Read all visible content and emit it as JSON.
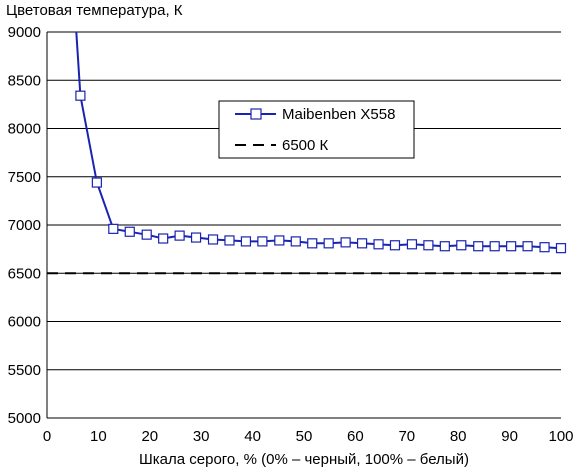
{
  "chart_data": {
    "type": "line",
    "title": "",
    "ylabel": "Цветовая температура, К",
    "xlabel": "Шкала серого, % (0% – черный, 100% – белый)",
    "xlim": [
      0,
      100
    ],
    "ylim": [
      5000,
      9000
    ],
    "xticks": [
      0,
      10,
      20,
      30,
      40,
      50,
      60,
      70,
      80,
      90,
      100
    ],
    "yticks": [
      5000,
      5500,
      6000,
      6500,
      7000,
      7500,
      8000,
      8500,
      9000
    ],
    "grid": "horizontal",
    "legend_position": "top-center",
    "series": [
      {
        "name": "Maibenben X558",
        "color": "#1a24b0",
        "style": "solid line with square markers",
        "x": [
          5.7,
          6.5,
          9.7,
          12.9,
          16.1,
          19.4,
          22.6,
          25.8,
          29.0,
          32.3,
          35.5,
          38.7,
          41.9,
          45.2,
          48.4,
          51.6,
          54.8,
          58.1,
          61.3,
          64.5,
          67.7,
          71.0,
          74.2,
          77.4,
          80.6,
          83.9,
          87.1,
          90.3,
          93.5,
          96.8,
          100
        ],
        "y": [
          9000,
          8340,
          7440,
          6960,
          6930,
          6900,
          6860,
          6890,
          6870,
          6850,
          6840,
          6830,
          6830,
          6840,
          6830,
          6810,
          6810,
          6820,
          6810,
          6800,
          6790,
          6800,
          6790,
          6780,
          6790,
          6780,
          6780,
          6780,
          6780,
          6770,
          6760
        ],
        "marker_start_index": 1
      },
      {
        "name": "6500 К",
        "color": "#000000",
        "style": "dashed",
        "x": [
          0,
          100
        ],
        "y": [
          6500,
          6500
        ]
      }
    ]
  }
}
